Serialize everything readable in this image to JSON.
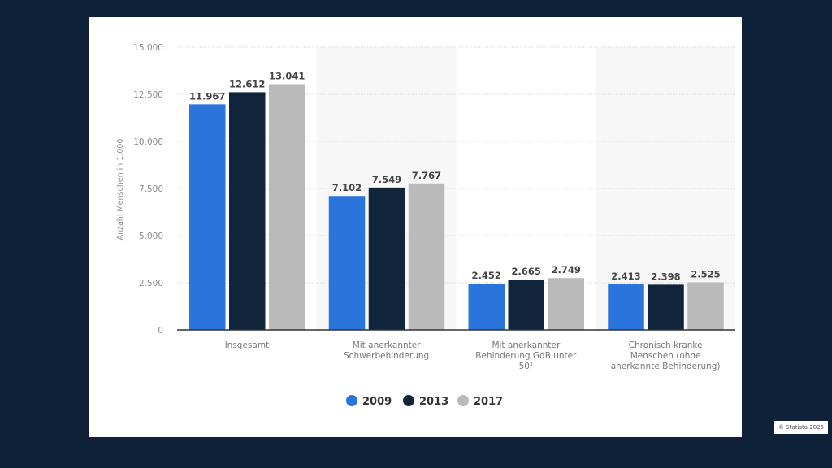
{
  "chart_data": {
    "type": "bar",
    "title": "",
    "xlabel": "",
    "ylabel": "Anzahl Menschen in 1.000",
    "ylim": [
      0,
      15000
    ],
    "yticks": [
      0,
      2500,
      5000,
      7500,
      10000,
      12500,
      15000
    ],
    "ytick_labels": [
      "0",
      "2.500",
      "5.000",
      "7.500",
      "10.000",
      "12.500",
      "15.000"
    ],
    "grid": true,
    "legend_position": "bottom-center",
    "categories": [
      [
        "Insgesamt"
      ],
      [
        "Mit anerkannter",
        "Schwerbehinderung"
      ],
      [
        "Mit anerkannter",
        "Behinderung GdB unter",
        "50¹"
      ],
      [
        "Chronisch kranke",
        "Menschen (ohne",
        "anerkannte Behinderung)"
      ]
    ],
    "series": [
      {
        "name": "2009",
        "color": "#2a74db",
        "values": [
          11967,
          7102,
          2452,
          2413
        ],
        "labels": [
          "11.967",
          "7.102",
          "2.452",
          "2.413"
        ]
      },
      {
        "name": "2013",
        "color": "#10243c",
        "values": [
          12612,
          7549,
          2665,
          2398
        ],
        "labels": [
          "12.612",
          "7.549",
          "2.665",
          "2.398"
        ]
      },
      {
        "name": "2017",
        "color": "#bababa",
        "values": [
          13041,
          7767,
          2749,
          2525
        ],
        "labels": [
          "13.041",
          "7.767",
          "2.749",
          "2.525"
        ]
      }
    ]
  },
  "footer": {
    "copyright": "© Statista 2025"
  }
}
